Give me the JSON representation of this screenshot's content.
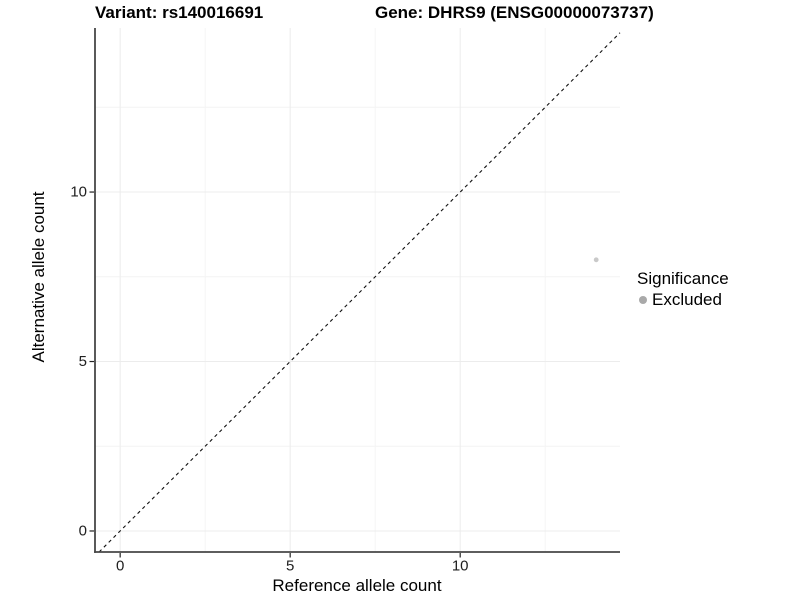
{
  "chart_data": {
    "type": "scatter",
    "title_left": "Variant: rs140016691",
    "title_right": "Gene: DHRS9 (ENSG00000073737)",
    "xlabel": "Reference allele count",
    "ylabel": "Alternative allele count",
    "xlim": [
      -0.74,
      14.7
    ],
    "ylim": [
      -0.62,
      14.84
    ],
    "x_major_ticks": [
      0,
      5,
      10
    ],
    "y_major_ticks": [
      0,
      5,
      10
    ],
    "x_minor_ticks": [
      2.5,
      7.5,
      12.5
    ],
    "y_minor_ticks": [
      2.5,
      7.5,
      12.5
    ],
    "grid": true,
    "identity_line": {
      "slope": 1,
      "intercept": 0,
      "style": "dashed"
    },
    "series": [
      {
        "name": "Excluded",
        "points": [
          {
            "x": 14,
            "y": 8
          }
        ]
      }
    ],
    "legend": {
      "title": "Significance",
      "position": "right",
      "items": [
        {
          "label": "Excluded",
          "color": "#a9a9a9"
        }
      ]
    },
    "colors": {
      "point": "#c9c9c9",
      "legend_point": "#a9a9a9",
      "grid_major": "#ececec",
      "grid_minor": "#f4f4f4",
      "axis_line": "#474747",
      "tick": "#222222",
      "identity_line": "#111111",
      "tick_label": "#202020"
    }
  }
}
